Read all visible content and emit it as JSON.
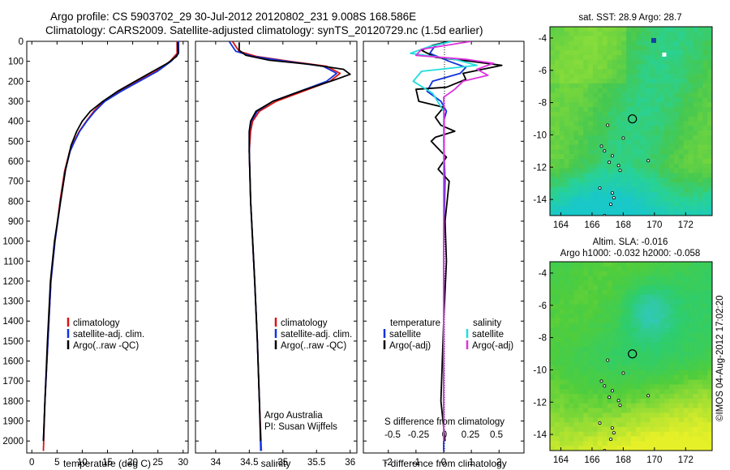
{
  "header": {
    "title_line1": "Argo profile: CS 5903702_29 30-Jul-2012 20120802_231 9.008S 168.586E",
    "title_line2": "Climatology: CARS2009. Satellite-adjusted climatology: synTS_20120729.nc (1.5d earlier)"
  },
  "colors": {
    "climatology": "#dd1111",
    "satellite_adj": "#1133dd",
    "argo": "#000000",
    "salinity_satellite": "#22dddd",
    "salinity_argo": "#dd33dd"
  },
  "chart_data": [
    {
      "type": "line",
      "name": "temperature-profile",
      "xlabel": "temperature (deg C)",
      "xlim": [
        -1,
        31
      ],
      "ylim": [
        2060,
        0
      ],
      "xticks": [
        "0",
        "5",
        "10",
        "15",
        "20",
        "25",
        "30"
      ],
      "yticks": [
        "0",
        "100",
        "200",
        "300",
        "400",
        "500",
        "600",
        "700",
        "800",
        "900",
        "1000",
        "1100",
        "1200",
        "1300",
        "1400",
        "1500",
        "1600",
        "1700",
        "1800",
        "1900",
        "2000"
      ],
      "legend": [
        "climatology",
        "satellite-adj. clim.",
        "Argo(..raw -QC)"
      ],
      "legend_position": "lower-center",
      "series": [
        {
          "name": "climatology",
          "color": "climatology",
          "x": [
            28.8,
            28.8,
            27.4,
            24.6,
            21.0,
            17.5,
            14.3,
            12.3,
            10.8,
            9.4,
            8.4,
            7.5,
            6.5,
            5.6,
            4.6,
            3.8,
            3.2,
            2.6,
            2.3
          ],
          "y": [
            0,
            60,
            100,
            150,
            200,
            250,
            300,
            350,
            400,
            450,
            500,
            550,
            650,
            800,
            1000,
            1200,
            1500,
            1800,
            2050
          ]
        },
        {
          "name": "satellite-adj. clim.",
          "color": "satellite_adj",
          "x": [
            29.1,
            29.1,
            27.6,
            24.9,
            21.3,
            17.7,
            14.5,
            12.5,
            10.9,
            9.5,
            8.5,
            7.6,
            6.6,
            5.7,
            4.6,
            3.8,
            3.2,
            2.6,
            2.3
          ],
          "y": [
            0,
            60,
            100,
            150,
            200,
            250,
            300,
            350,
            400,
            450,
            500,
            550,
            650,
            800,
            1000,
            1200,
            1500,
            1800,
            2000
          ]
        },
        {
          "name": "Argo(..raw -QC)",
          "color": "argo",
          "x": [
            28.9,
            29.0,
            28.7,
            26.9,
            24.0,
            20.5,
            17.0,
            14.1,
            11.6,
            10.0,
            8.9,
            7.8,
            6.7,
            5.7,
            4.5,
            3.7,
            3.1,
            2.6,
            2.3
          ],
          "y": [
            5,
            60,
            75,
            110,
            150,
            200,
            250,
            300,
            350,
            400,
            450,
            520,
            640,
            800,
            1000,
            1200,
            1500,
            1800,
            2000
          ]
        }
      ]
    },
    {
      "type": "line",
      "name": "salinity-profile",
      "xlabel": "salinity",
      "xlim": [
        33.7,
        36.1
      ],
      "ylim": [
        2060,
        0
      ],
      "xticks": [
        "34",
        "34.5",
        "35",
        "35.5",
        "36"
      ],
      "legend": [
        "climatology",
        "satellite-adj. clim.",
        "Argo(..raw -QC)"
      ],
      "legend_position": "lower-right",
      "annotation": [
        "Argo Australia",
        "PI: Susan Wijffels"
      ],
      "series": [
        {
          "name": "climatology",
          "color": "climatology",
          "x": [
            34.25,
            34.3,
            34.35,
            34.6,
            35.1,
            35.65,
            35.85,
            35.7,
            35.3,
            34.9,
            34.65,
            34.55,
            34.52,
            34.5,
            34.52,
            34.55,
            34.58,
            34.62,
            34.65,
            34.68
          ],
          "y": [
            0,
            25,
            50,
            75,
            100,
            125,
            160,
            200,
            250,
            300,
            350,
            400,
            450,
            550,
            800,
            1000,
            1200,
            1500,
            1800,
            2050
          ]
        },
        {
          "name": "satellite-adj. clim.",
          "color": "satellite_adj",
          "x": [
            34.2,
            34.25,
            34.3,
            34.55,
            35.05,
            35.6,
            35.8,
            35.65,
            35.25,
            34.85,
            34.62,
            34.53,
            34.5,
            34.5,
            34.52,
            34.55,
            34.58,
            34.62,
            34.65,
            34.67
          ],
          "y": [
            0,
            25,
            50,
            75,
            100,
            125,
            160,
            200,
            250,
            300,
            350,
            400,
            450,
            550,
            800,
            1000,
            1200,
            1500,
            1800,
            2050
          ]
        },
        {
          "name": "Argo(..raw -QC)",
          "color": "argo",
          "x": [
            34.35,
            34.35,
            34.45,
            34.8,
            35.4,
            35.9,
            36.0,
            35.75,
            35.3,
            34.85,
            34.6,
            34.52,
            34.5,
            34.5,
            34.52,
            34.55,
            34.58,
            34.62,
            34.65,
            34.67
          ],
          "y": [
            5,
            45,
            70,
            95,
            115,
            140,
            165,
            195,
            245,
            300,
            350,
            400,
            450,
            550,
            800,
            1000,
            1200,
            1500,
            1800,
            2000
          ]
        }
      ]
    },
    {
      "type": "line",
      "name": "difference-profile",
      "xlabel": "T difference from climatology",
      "xlabel_top": "S difference from climatology",
      "xlim": [
        -2.9,
        2.9
      ],
      "ylim": [
        2060,
        0
      ],
      "xticks": [
        "-2",
        "-1",
        "0",
        "1",
        "2"
      ],
      "xticks_top": [
        "-0.5",
        "-0.25",
        "0",
        "0.25",
        "0.5"
      ],
      "legend_title_left": "temperature",
      "legend_title_right": "salinity",
      "legend_left": [
        "satellite",
        "Argo(-adj)"
      ],
      "legend_right": [
        "satellite",
        "Argo(-adj)"
      ],
      "series": [
        {
          "name": "temperature satellite",
          "color": "satellite_adj",
          "x": [
            0.3,
            -0.3,
            -0.5,
            0.2,
            0.8,
            0.6,
            -0.4,
            -0.6,
            -0.1,
            0.1,
            0.0,
            0.0,
            0.05,
            0.0,
            0.0,
            0.0,
            0.0
          ],
          "y": [
            0,
            20,
            60,
            100,
            130,
            160,
            200,
            250,
            300,
            350,
            400,
            500,
            700,
            1000,
            1400,
            1800,
            2050
          ]
        },
        {
          "name": "temperature Argo(-adj)",
          "color": "argo",
          "x": [
            0.2,
            -0.4,
            -0.8,
            -0.3,
            1.0,
            2.1,
            0.7,
            0.8,
            0.1,
            -1.0,
            -0.9,
            0.0,
            -0.3,
            -0.1,
            0.4,
            -0.3,
            -0.45,
            0.1,
            -0.2,
            0.2,
            0.05,
            0.1,
            0.0,
            -0.1,
            0.05
          ],
          "y": [
            0,
            20,
            45,
            80,
            100,
            120,
            160,
            190,
            230,
            240,
            300,
            330,
            380,
            420,
            450,
            480,
            500,
            580,
            640,
            700,
            900,
            1100,
            1400,
            1800,
            2000
          ]
        },
        {
          "name": "salinity satellite",
          "color": "salinity_satellite",
          "x": [
            0.3,
            -0.5,
            -1.2,
            0.4,
            1.2,
            -0.8,
            -1.1,
            -0.4,
            0.0,
            0.0,
            0.0,
            0.0
          ],
          "y": [
            0,
            25,
            60,
            90,
            120,
            150,
            200,
            260,
            350,
            500,
            1000,
            2000
          ]
        },
        {
          "name": "salinity Argo(-adj)",
          "color": "salinity_argo",
          "x": [
            1.0,
            -0.8,
            -1.0,
            0.8,
            1.8,
            1.2,
            1.6,
            0.7,
            0.4,
            0.0,
            0.02,
            0.0,
            0.0
          ],
          "y": [
            0,
            40,
            70,
            90,
            110,
            140,
            170,
            200,
            240,
            280,
            400,
            1000,
            2000
          ]
        }
      ]
    },
    {
      "type": "heatmap",
      "name": "sst-map",
      "title": "sat. SST: 28.9 Argo: 28.7",
      "xlim": [
        163.3,
        173.7
      ],
      "ylim": [
        -15,
        -3.3
      ],
      "xticks": [
        "164",
        "166",
        "168",
        "170",
        "172"
      ],
      "yticks": [
        "-4",
        "-6",
        "-8",
        "-10",
        "-12",
        "-14"
      ],
      "argo_position": {
        "lon": 168.586,
        "lat": -9.008
      }
    },
    {
      "type": "heatmap",
      "name": "sla-map",
      "title_line1": "Altim. SLA: -0.016",
      "title_line2": "Argo h1000: -0.032 h2000: -0.058",
      "xlim": [
        163.3,
        173.7
      ],
      "ylim": [
        -15,
        -3.3
      ],
      "xticks": [
        "164",
        "166",
        "168",
        "170",
        "172"
      ],
      "yticks": [
        "-4",
        "-6",
        "-8",
        "-10",
        "-12",
        "-14"
      ],
      "argo_position": {
        "lon": 168.586,
        "lat": -9.008
      }
    }
  ],
  "timestamp": "©IMOS 04-Aug-2012 17:02:20"
}
